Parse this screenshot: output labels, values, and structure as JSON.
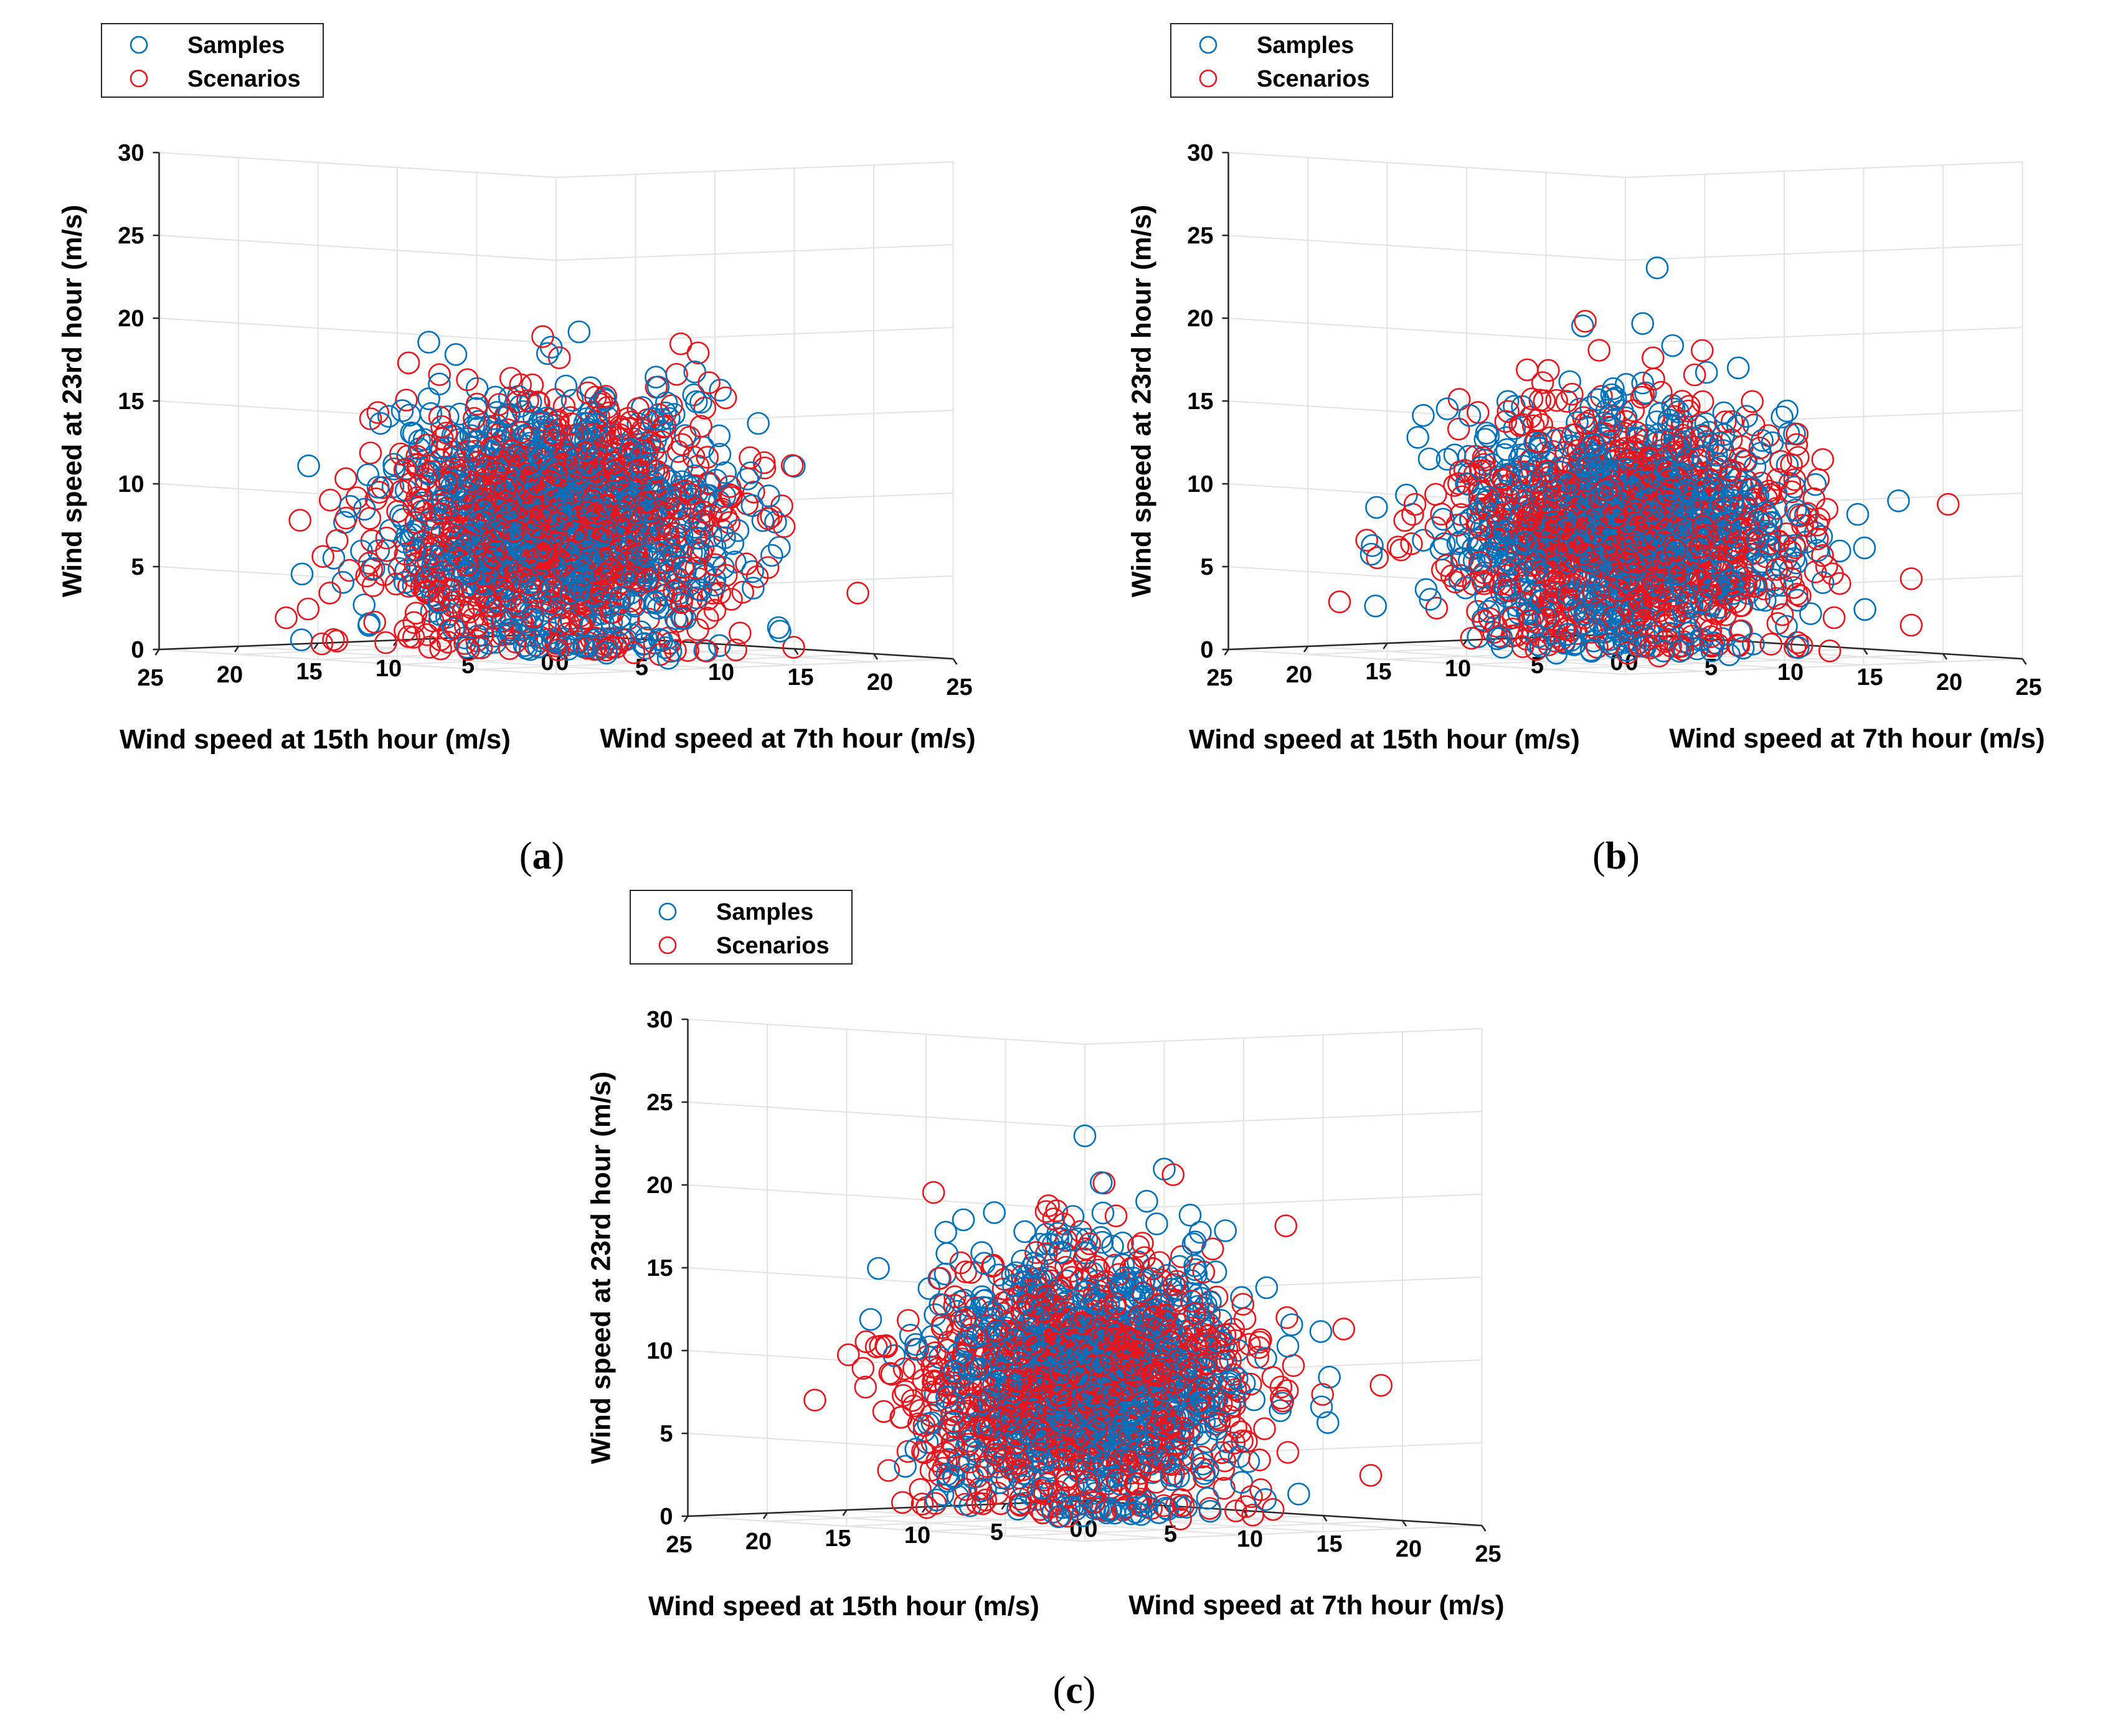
{
  "colors": {
    "samples": "#0072BD",
    "scenarios": "#E8161C"
  },
  "chart_data": [
    {
      "type": "scatter",
      "caption": "a",
      "title": "",
      "xlabel": "Wind speed at 7th hour (m/s)",
      "ylabel": "Wind speed at 15th hour (m/s)",
      "zlabel": "Wind speed at 23rd hour (m/s)",
      "xlim": [
        0,
        25
      ],
      "ylim": [
        0,
        25
      ],
      "zlim": [
        0,
        30
      ],
      "xticks": [
        "0",
        "5",
        "10",
        "15",
        "20",
        "25"
      ],
      "yticks": [
        "0",
        "5",
        "10",
        "15",
        "20",
        "25"
      ],
      "zticks": [
        "0",
        "5",
        "10",
        "15",
        "20",
        "25",
        "30"
      ],
      "grid": true,
      "legend_position": "top-left",
      "series": [
        {
          "name": "Samples",
          "color": "#0072BD",
          "marker": "open-circle",
          "mean": [
            8.5,
            8.5,
            7.5
          ],
          "spread": [
            3.6,
            3.6,
            3.8
          ],
          "count": 1000,
          "outliers": [
            [
              20,
              16,
              4
            ],
            [
              8,
              24,
              5
            ],
            [
              22,
              8,
              2
            ]
          ]
        },
        {
          "name": "Scenarios",
          "color": "#E8161C",
          "marker": "open-circle",
          "mean": [
            8.5,
            8.5,
            7.0
          ],
          "spread": [
            3.9,
            3.9,
            3.8
          ],
          "count": 1000,
          "outliers": [
            [
              23,
              4,
              4
            ],
            [
              20,
              10,
              3
            ],
            [
              4,
              21,
              2
            ],
            [
              18,
              16,
              9
            ]
          ]
        }
      ]
    },
    {
      "type": "scatter",
      "caption": "b",
      "title": "",
      "xlabel": "Wind speed at 7th hour (m/s)",
      "ylabel": "Wind speed at 15th hour (m/s)",
      "zlabel": "Wind speed at 23rd hour (m/s)",
      "xlim": [
        0,
        25
      ],
      "ylim": [
        0,
        25
      ],
      "zlim": [
        0,
        30
      ],
      "xticks": [
        "0",
        "5",
        "10",
        "15",
        "20",
        "25"
      ],
      "yticks": [
        "0",
        "5",
        "10",
        "15",
        "20",
        "25"
      ],
      "zticks": [
        "0",
        "5",
        "10",
        "15",
        "20",
        "25",
        "30"
      ],
      "grid": true,
      "legend_position": "top-left",
      "series": [
        {
          "name": "Samples",
          "color": "#0072BD",
          "marker": "open-circle",
          "mean": [
            8.2,
            8.2,
            7.0
          ],
          "spread": [
            3.6,
            3.6,
            3.6
          ],
          "count": 1000,
          "outliers": [
            [
              21,
              12,
              7
            ],
            [
              6,
              22,
              6
            ],
            [
              10,
              8,
              23
            ]
          ]
        },
        {
          "name": "Scenarios",
          "color": "#E8161C",
          "marker": "open-circle",
          "mean": [
            8.2,
            8.2,
            7.0
          ],
          "spread": [
            3.9,
            3.9,
            3.7
          ],
          "count": 1000,
          "outliers": [
            [
              24,
              6,
              5
            ],
            [
              22,
              4,
              2
            ],
            [
              4,
              22,
              3
            ],
            [
              21,
              14,
              7
            ]
          ]
        }
      ]
    },
    {
      "type": "scatter",
      "caption": "c",
      "title": "",
      "xlabel": "Wind speed at 7th hour (m/s)",
      "ylabel": "Wind speed at 15th hour (m/s)",
      "zlabel": "Wind speed at 23rd hour (m/s)",
      "xlim": [
        0,
        25
      ],
      "ylim": [
        0,
        25
      ],
      "zlim": [
        0,
        30
      ],
      "xticks": [
        "0",
        "5",
        "10",
        "15",
        "20",
        "25"
      ],
      "yticks": [
        "0",
        "5",
        "10",
        "15",
        "20",
        "25"
      ],
      "zticks": [
        "0",
        "5",
        "10",
        "15",
        "20",
        "25",
        "30"
      ],
      "grid": true,
      "legend_position": "top-left",
      "series": [
        {
          "name": "Samples",
          "color": "#0072BD",
          "marker": "open-circle",
          "mean": [
            7.5,
            7.5,
            8.0
          ],
          "spread": [
            3.4,
            3.4,
            4.0
          ],
          "count": 1000,
          "outliers": [
            [
              5,
              18,
              15
            ],
            [
              10,
              10,
              23
            ],
            [
              12,
              7,
              21
            ]
          ]
        },
        {
          "name": "Scenarios",
          "color": "#E8161C",
          "marker": "open-circle",
          "mean": [
            7.5,
            7.5,
            7.5
          ],
          "spread": [
            3.7,
            3.7,
            3.9
          ],
          "count": 1000,
          "outliers": [
            [
              22,
              4,
              3
            ],
            [
              20,
              9,
              4
            ],
            [
              3,
              20,
              7
            ],
            [
              19,
              12,
              11
            ]
          ]
        }
      ]
    }
  ]
}
